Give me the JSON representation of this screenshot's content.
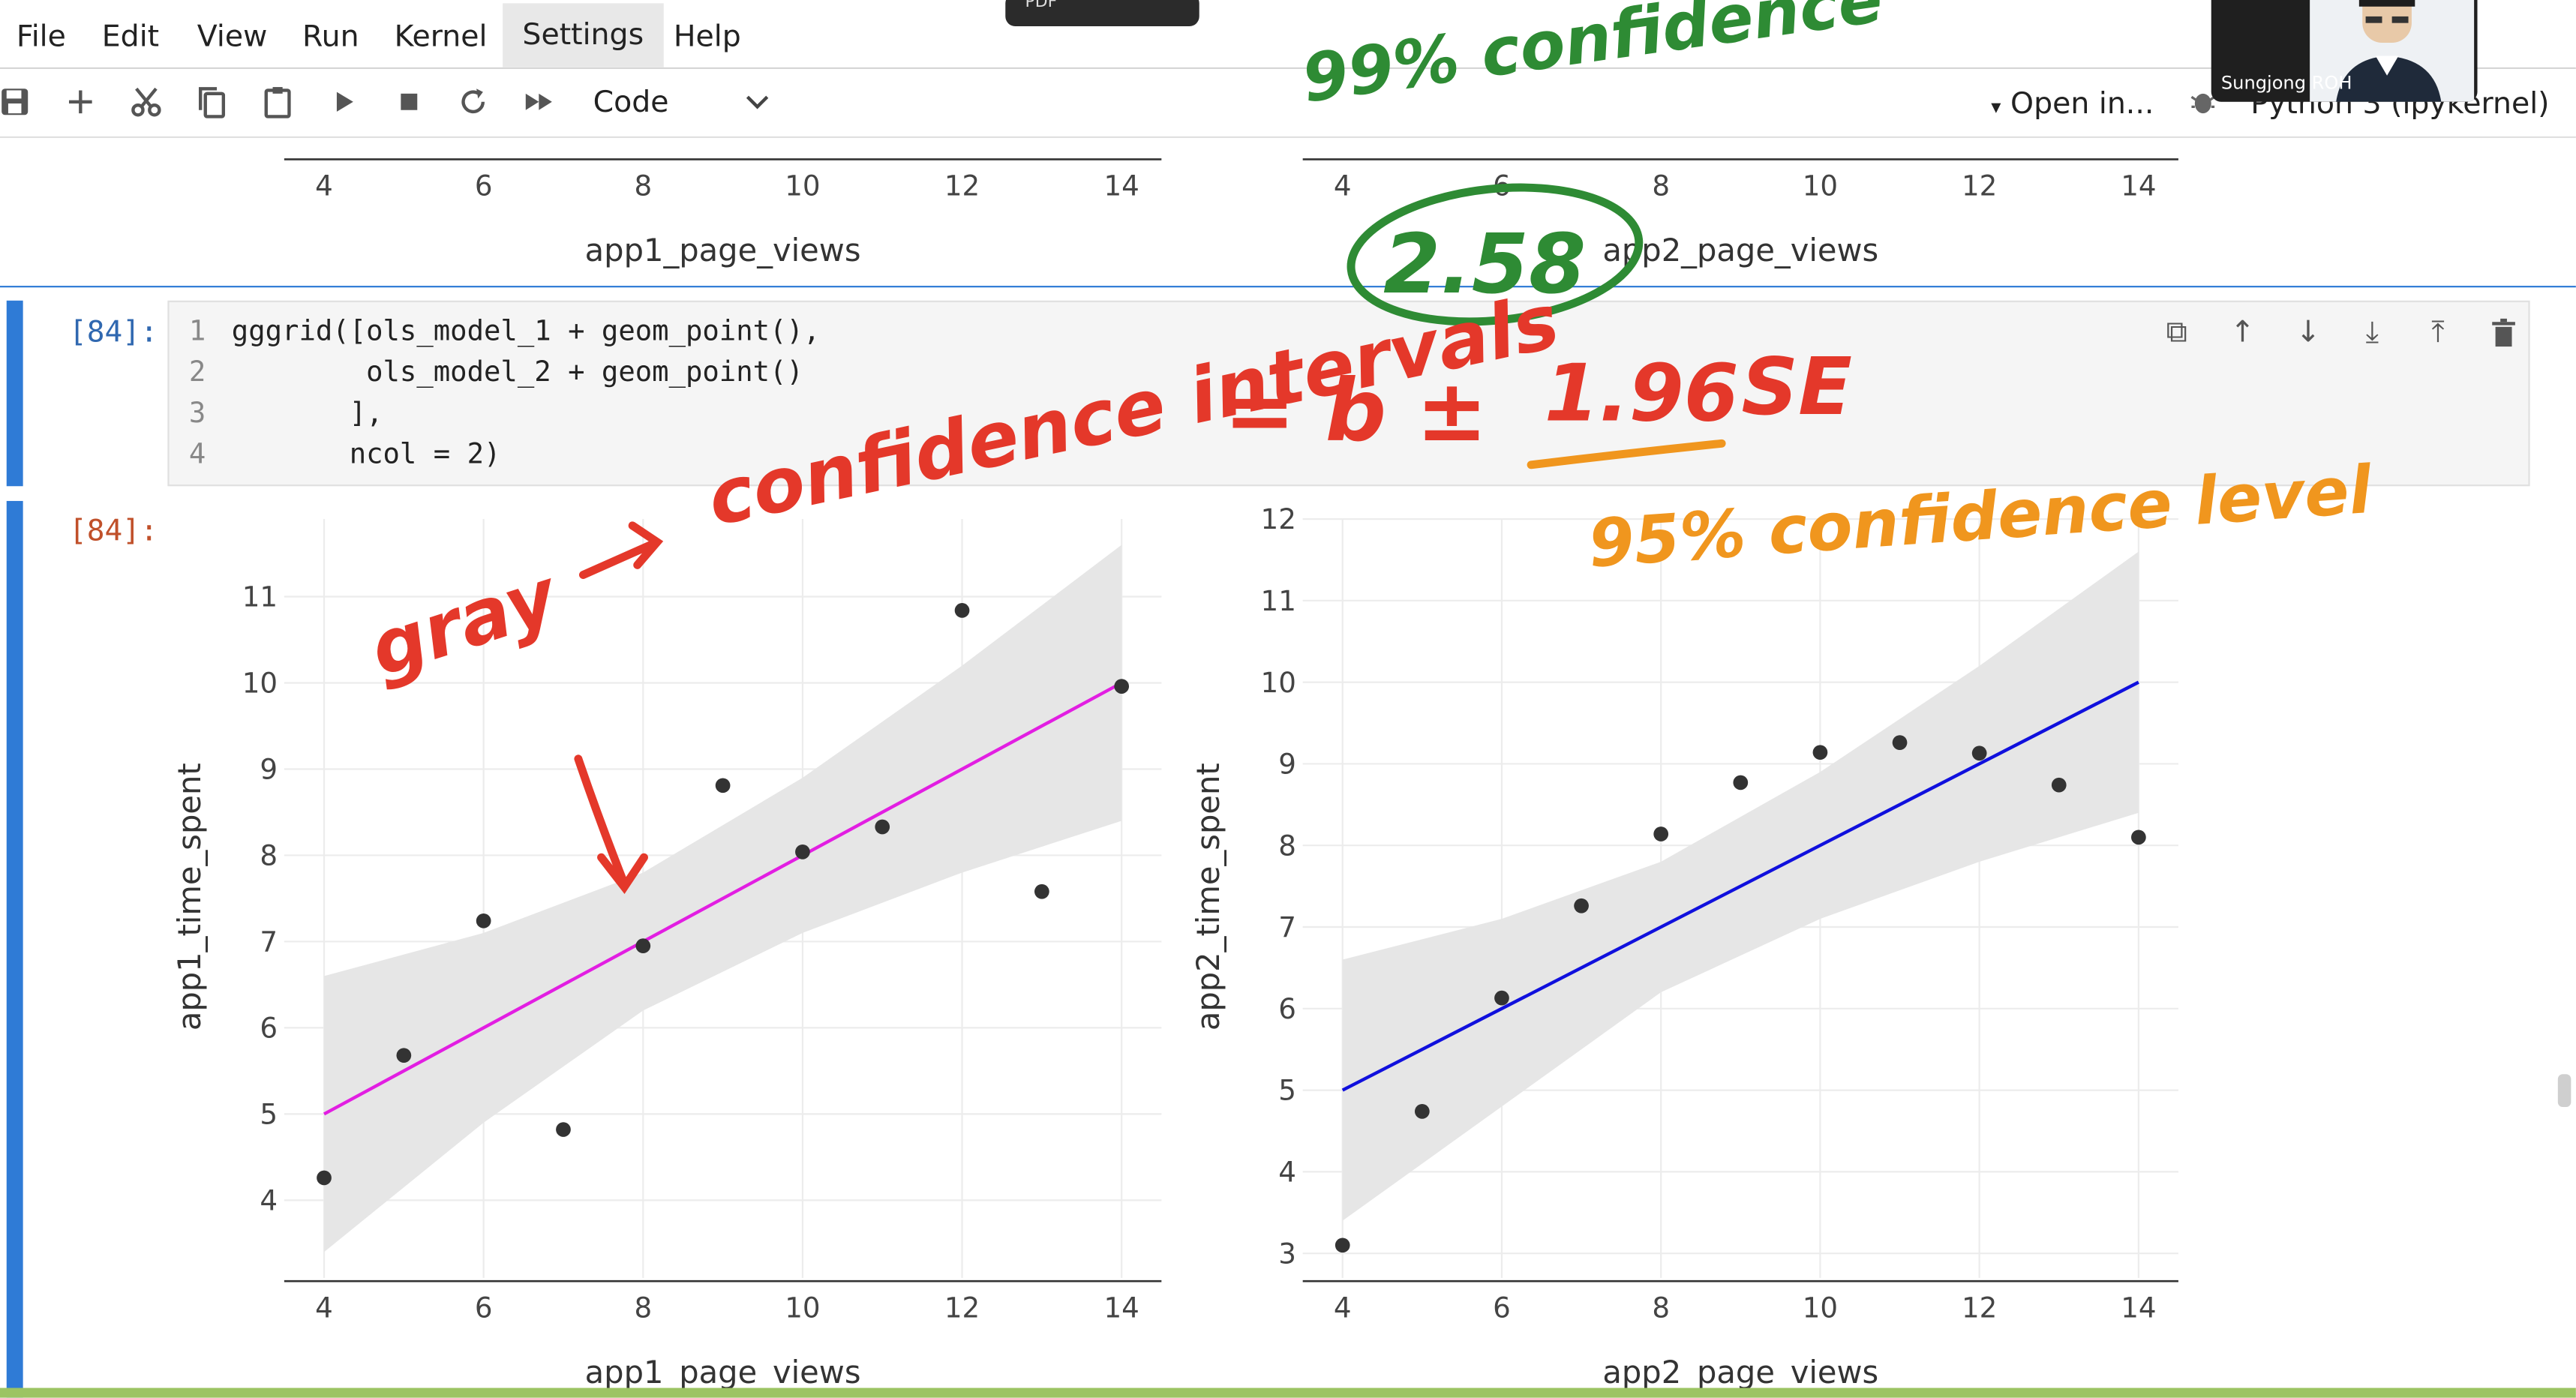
{
  "menubar": {
    "items": [
      "File",
      "Edit",
      "View",
      "Run",
      "Kernel",
      "Settings",
      "Help"
    ],
    "active": "Settings",
    "top_modal_text": "PDF"
  },
  "toolbar": {
    "cell_type": "Code",
    "open_in": "Open in...",
    "kernel": "Python 3 (ipykernel)",
    "icons": [
      "save-icon",
      "add-icon",
      "cut-icon",
      "copy-icon",
      "paste-icon",
      "run-icon",
      "stop-icon",
      "restart-icon",
      "fast-forward-icon"
    ]
  },
  "video": {
    "participant_name": "Sungjong ROH"
  },
  "top_partial_plot": {
    "left_ticks": [
      "4",
      "6",
      "8",
      "10",
      "12",
      "14"
    ],
    "right_ticks": [
      "4",
      "6",
      "8",
      "10",
      "12",
      "14"
    ],
    "left_xlabel": "app1_page_views",
    "right_xlabel": "app2_page_views"
  },
  "cell": {
    "input_prompt": "[84]:",
    "output_prompt": "[84]:",
    "line_numbers": [
      "1",
      "2",
      "3",
      "4"
    ],
    "code_lines": [
      "gggrid([ols_model_1 + geom_point(),",
      "        ols_model_2 + geom_point()",
      "       ],",
      "       ncol = 2)"
    ],
    "tool_icons": [
      "duplicate-icon",
      "move-up-icon",
      "move-down-icon",
      "insert-below-icon",
      "insert-above-icon",
      "delete-icon"
    ]
  },
  "annotations": {
    "green_top": "99% confidence",
    "green_circle": "2.58",
    "red_gray": "gray",
    "red_ci": "confidence intervals",
    "red_formula_eq": "= b ±",
    "red_formula_se": "SE",
    "orange_196": "1.96",
    "orange_level": "95% confidence level"
  },
  "chart_data": [
    {
      "type": "scatter",
      "title": "",
      "xlabel": "app1_page_views",
      "ylabel": "app1_time_spent",
      "xlim": [
        3.5,
        14.5
      ],
      "ylim": [
        3.1,
        11.9
      ],
      "xticks": [
        4,
        6,
        8,
        10,
        12,
        14
      ],
      "yticks": [
        4,
        5,
        6,
        7,
        8,
        9,
        10,
        11
      ],
      "x": [
        4,
        5,
        6,
        7,
        8,
        9,
        10,
        11,
        12,
        13,
        14
      ],
      "y": [
        4.26,
        5.68,
        7.24,
        4.82,
        6.95,
        8.81,
        8.04,
        8.33,
        10.84,
        7.58,
        9.96
      ],
      "fit_line": {
        "x": [
          4,
          14
        ],
        "y": [
          5.0,
          10.0
        ],
        "color": "#e21ee2"
      },
      "confidence_band": {
        "x": [
          4,
          6,
          8,
          10,
          12,
          14
        ],
        "lower": [
          3.4,
          4.9,
          6.2,
          7.1,
          7.8,
          8.4
        ],
        "upper": [
          6.6,
          7.1,
          7.8,
          8.9,
          10.2,
          11.6
        ],
        "color": "#e6e6e6"
      },
      "grid": true
    },
    {
      "type": "scatter",
      "title": "",
      "xlabel": "app2_page_views",
      "ylabel": "app2_time_spent",
      "xlim": [
        3.5,
        14.5
      ],
      "ylim": [
        2.7,
        12.0
      ],
      "xticks": [
        4,
        6,
        8,
        10,
        12,
        14
      ],
      "yticks": [
        3,
        4,
        5,
        6,
        7,
        8,
        9,
        10,
        11,
        12
      ],
      "x": [
        4,
        5,
        6,
        7,
        8,
        9,
        10,
        11,
        12,
        13,
        14
      ],
      "y": [
        3.1,
        4.74,
        6.13,
        7.26,
        8.14,
        8.77,
        9.14,
        9.26,
        9.13,
        8.74,
        8.1
      ],
      "fit_line": {
        "x": [
          4,
          14
        ],
        "y": [
          5.0,
          10.0
        ],
        "color": "#1010dd"
      },
      "confidence_band": {
        "x": [
          4,
          6,
          8,
          10,
          12,
          14
        ],
        "lower": [
          3.4,
          4.8,
          6.2,
          7.1,
          7.8,
          8.4
        ],
        "upper": [
          6.6,
          7.1,
          7.8,
          8.9,
          10.2,
          11.6
        ],
        "color": "#e6e6e6"
      },
      "grid": true
    }
  ]
}
